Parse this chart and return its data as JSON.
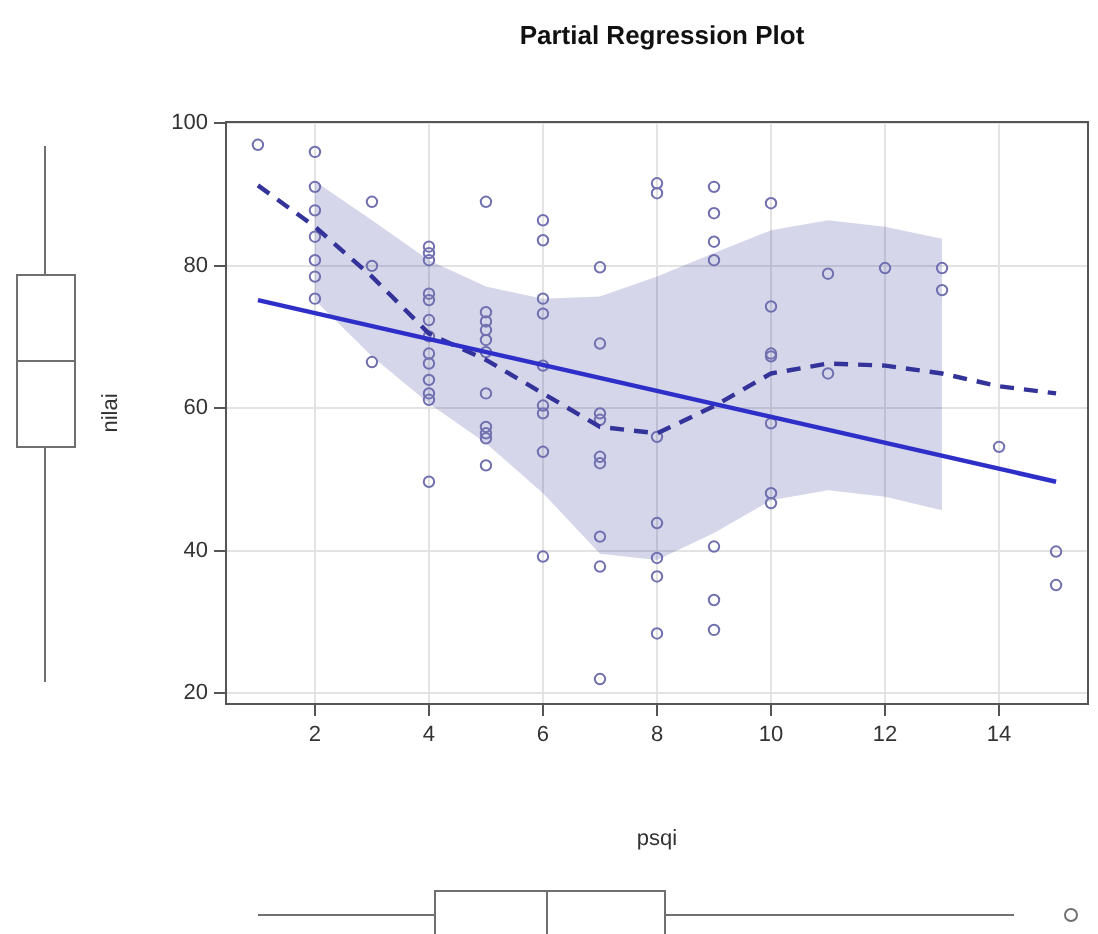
{
  "chart_data": {
    "type": "scatter",
    "title": "Partial Regression Plot",
    "xlabel": "psqi",
    "ylabel": "nilai",
    "xlim": [
      0.44,
      15.56
    ],
    "xticks": [
      2,
      4,
      6,
      8,
      10,
      12,
      14
    ],
    "ylim": [
      18.5,
      100.2
    ],
    "yticks": [
      20,
      40,
      60,
      80,
      100
    ],
    "grid": true,
    "series": [
      {
        "type": "scatter",
        "marker": "circle",
        "color": "#7070b0",
        "x": [
          1,
          2,
          2,
          2,
          2,
          2,
          2,
          2,
          3,
          3,
          3,
          4,
          4,
          4,
          4,
          4,
          4,
          4,
          4,
          4,
          4,
          4,
          4,
          4,
          5,
          5,
          5,
          5,
          5,
          5,
          5,
          5,
          5,
          5,
          5,
          6,
          6,
          6,
          6,
          6,
          6,
          6,
          6,
          6,
          7,
          7,
          7,
          7,
          7,
          7,
          7,
          7,
          7,
          8,
          8,
          8,
          8,
          8,
          8,
          8,
          9,
          9,
          9,
          9,
          9,
          9,
          9,
          10,
          10,
          10,
          10,
          10,
          10,
          10,
          11,
          11,
          12,
          13,
          13,
          14,
          15,
          15
        ],
        "values": [
          97,
          96,
          91.1,
          87.8,
          84.1,
          80.8,
          78.5,
          75.4,
          89,
          80,
          66.5,
          82.7,
          81.8,
          80.8,
          76.1,
          75.2,
          72.4,
          70.1,
          67.7,
          66.3,
          64,
          62.1,
          61.2,
          49.7,
          89,
          73.5,
          72.2,
          71,
          69.6,
          67.9,
          62.1,
          57.4,
          56.5,
          55.8,
          52,
          86.4,
          83.6,
          75.4,
          73.3,
          66,
          60.4,
          59.3,
          53.9,
          39.2,
          79.8,
          69.1,
          59.3,
          58.4,
          53.2,
          52.3,
          42,
          37.8,
          22,
          91.6,
          90.2,
          56,
          43.9,
          39,
          36.4,
          28.4,
          91.1,
          87.4,
          83.4,
          80.8,
          40.6,
          33.1,
          28.9,
          88.8,
          74.3,
          67.7,
          67.3,
          57.9,
          48.1,
          46.7,
          78.9,
          64.9,
          79.7,
          79.7,
          76.6,
          54.6,
          39.9,
          35.2
        ]
      },
      {
        "type": "line",
        "marker": "none",
        "line_style": "solid",
        "color": "#2e2ec8",
        "x": [
          1,
          15
        ],
        "values": [
          75.2,
          49.7
        ]
      },
      {
        "type": "line",
        "marker": "none",
        "line_style": "dashed",
        "color": "#33339a",
        "x": [
          1,
          2,
          3,
          4,
          5,
          6,
          7,
          8,
          9,
          10,
          11,
          12,
          13,
          14,
          15
        ],
        "values": [
          91.3,
          85.5,
          78.5,
          70.5,
          66.8,
          62.1,
          57.4,
          56.5,
          60.3,
          64.9,
          66.3,
          66,
          64.9,
          63.1,
          62.1
        ],
        "lower": [
          null,
          75.2,
          67.3,
          60.7,
          55.1,
          48.1,
          39.6,
          38.7,
          42.5,
          47.1,
          48.5,
          47.6,
          45.7,
          null,
          null
        ],
        "upper": [
          null,
          91.9,
          86.4,
          80.8,
          77.1,
          75.4,
          75.7,
          78.5,
          81.8,
          85,
          86.4,
          85.5,
          83.8,
          null,
          null
        ]
      }
    ]
  }
}
